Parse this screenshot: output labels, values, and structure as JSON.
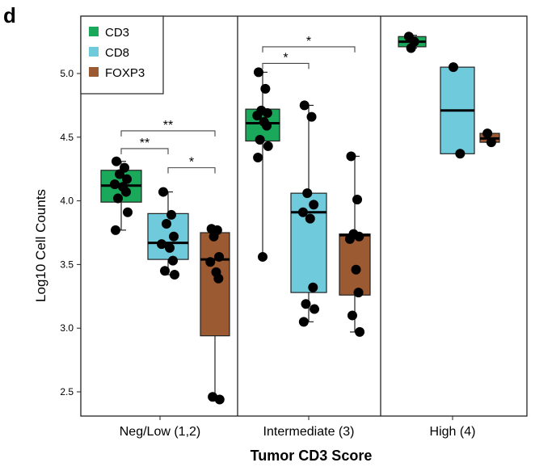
{
  "panel_label": "d",
  "chart_data": {
    "type": "box",
    "title": "",
    "xlabel": "Tumor CD3 Score",
    "ylabel": "Log10 Cell Counts",
    "ylim": [
      2.38,
      5.35
    ],
    "yticks": [
      "2.5",
      "3.0",
      "3.5",
      "4.0",
      "4.5",
      "5.0"
    ],
    "legend": {
      "position": "top-left",
      "entries": [
        {
          "name": "CD3",
          "color": "#1aa85a"
        },
        {
          "name": "CD8",
          "color": "#6fcadb"
        },
        {
          "name": "FOXP3",
          "color": "#9b5a32"
        }
      ]
    },
    "groups": [
      {
        "label": "Neg/Low (1,2)",
        "boxes": [
          {
            "series": "CD3",
            "whisker_low": 3.77,
            "q1": 3.99,
            "median": 4.12,
            "q3": 4.24,
            "whisker_high": 4.31,
            "points": [
              4.31,
              4.26,
              4.21,
              4.17,
              4.13,
              4.11,
              4.07,
              4.02,
              3.91,
              3.77
            ]
          },
          {
            "series": "CD8",
            "whisker_low": 3.42,
            "q1": 3.54,
            "median": 3.67,
            "q3": 3.9,
            "whisker_high": 4.07,
            "points": [
              4.07,
              3.89,
              3.82,
              3.72,
              3.66,
              3.63,
              3.53,
              3.45,
              3.42
            ]
          },
          {
            "series": "FOXP3",
            "whisker_low": 2.44,
            "q1": 2.94,
            "median": 3.54,
            "q3": 3.75,
            "whisker_high": 3.78,
            "points": [
              3.78,
              3.77,
              3.72,
              3.56,
              3.52,
              3.44,
              3.39,
              2.46,
              2.44
            ]
          }
        ],
        "significance": [
          {
            "from": 0,
            "to": 1,
            "label": "**",
            "y": 4.41
          },
          {
            "from": 1,
            "to": 2,
            "label": "*",
            "y": 4.26
          },
          {
            "from": 0,
            "to": 2,
            "label": "**",
            "y": 4.55
          }
        ]
      },
      {
        "label": "Intermediate (3)",
        "boxes": [
          {
            "series": "CD3",
            "whisker_low": 3.56,
            "q1": 4.47,
            "median": 4.61,
            "q3": 4.72,
            "whisker_high": 5.01,
            "points": [
              5.01,
              4.88,
              4.71,
              4.69,
              4.67,
              4.62,
              4.59,
              4.48,
              4.43,
              4.34,
              3.56
            ]
          },
          {
            "series": "CD8",
            "whisker_low": 3.05,
            "q1": 3.28,
            "median": 3.91,
            "q3": 4.06,
            "whisker_high": 4.75,
            "points": [
              4.75,
              4.66,
              4.06,
              3.97,
              3.91,
              3.86,
              3.32,
              3.19,
              3.15,
              3.05
            ]
          },
          {
            "series": "FOXP3",
            "whisker_low": 2.97,
            "q1": 3.26,
            "median": 3.73,
            "q3": 3.74,
            "whisker_high": 4.35,
            "points": [
              4.35,
              4.01,
              3.74,
              3.72,
              3.7,
              3.46,
              3.28,
              3.1,
              2.97
            ]
          }
        ],
        "significance": [
          {
            "from": 0,
            "to": 1,
            "label": "*",
            "y": 5.08
          },
          {
            "from": 0,
            "to": 2,
            "label": "*",
            "y": 5.21
          }
        ]
      },
      {
        "label": "High (4)",
        "boxes": [
          {
            "series": "CD3",
            "whisker_low": 5.2,
            "q1": 5.21,
            "median": 5.25,
            "q3": 5.29,
            "whisker_high": 5.3,
            "points": [
              5.29,
              5.25,
              5.2
            ]
          },
          {
            "series": "CD8",
            "whisker_low": 4.37,
            "q1": 4.37,
            "median": 4.71,
            "q3": 5.05,
            "whisker_high": 5.05,
            "points": [
              5.05,
              4.37
            ]
          },
          {
            "series": "FOXP3",
            "whisker_low": 4.46,
            "q1": 4.46,
            "median": 4.49,
            "q3": 4.53,
            "whisker_high": 4.53,
            "points": [
              4.53,
              4.46
            ]
          }
        ],
        "significance": []
      }
    ]
  }
}
